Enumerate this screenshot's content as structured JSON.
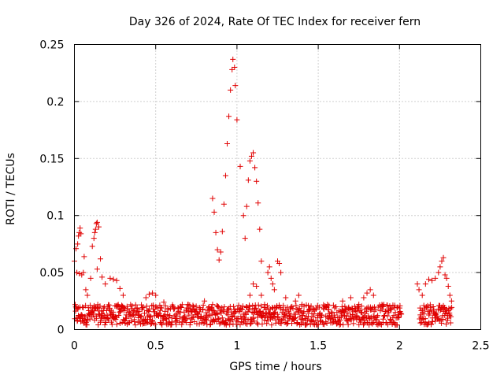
{
  "chart_data": {
    "type": "scatter",
    "title": "Day 326 of 2024, Rate Of TEC Index for receiver fern",
    "xlabel": "GPS time / hours",
    "ylabel": "ROTI / TECUs",
    "xlim": [
      0,
      2.5
    ],
    "ylim": [
      0,
      0.25
    ],
    "xticks": [
      0,
      0.5,
      1,
      1.5,
      2,
      2.5
    ],
    "xtick_labels": [
      "0",
      "0.5",
      "1",
      "1.5",
      "2",
      "2.5"
    ],
    "yticks": [
      0,
      0.05,
      0.1,
      0.15,
      0.2,
      0.25
    ],
    "ytick_labels": [
      "0",
      "0.05",
      "0.1",
      "0.15",
      "0.2",
      "0.25"
    ],
    "grid": true,
    "marker": "plus",
    "color": "#e00000",
    "series": [
      {
        "name": "ROTI",
        "points": [
          [
            0.0,
            0.06
          ],
          [
            0.01,
            0.071
          ],
          [
            0.015,
            0.05
          ],
          [
            0.02,
            0.075
          ],
          [
            0.025,
            0.082
          ],
          [
            0.03,
            0.085
          ],
          [
            0.035,
            0.089
          ],
          [
            0.04,
            0.084
          ],
          [
            0.03,
            0.049
          ],
          [
            0.045,
            0.048
          ],
          [
            0.055,
            0.05
          ],
          [
            0.06,
            0.064
          ],
          [
            0.07,
            0.035
          ],
          [
            0.08,
            0.03
          ],
          [
            0.1,
            0.045
          ],
          [
            0.11,
            0.073
          ],
          [
            0.12,
            0.08
          ],
          [
            0.125,
            0.085
          ],
          [
            0.13,
            0.088
          ],
          [
            0.135,
            0.093
          ],
          [
            0.14,
            0.094
          ],
          [
            0.15,
            0.09
          ],
          [
            0.16,
            0.062
          ],
          [
            0.14,
            0.053
          ],
          [
            0.17,
            0.046
          ],
          [
            0.19,
            0.04
          ],
          [
            0.22,
            0.045
          ],
          [
            0.24,
            0.044
          ],
          [
            0.26,
            0.043
          ],
          [
            0.28,
            0.036
          ],
          [
            0.3,
            0.03
          ],
          [
            0.44,
            0.028
          ],
          [
            0.46,
            0.031
          ],
          [
            0.48,
            0.032
          ],
          [
            0.5,
            0.03
          ],
          [
            0.55,
            0.024
          ],
          [
            0.6,
            0.02
          ],
          [
            0.7,
            0.022
          ],
          [
            0.8,
            0.025
          ],
          [
            0.85,
            0.022
          ],
          [
            0.85,
            0.115
          ],
          [
            0.86,
            0.103
          ],
          [
            0.87,
            0.085
          ],
          [
            0.88,
            0.07
          ],
          [
            0.89,
            0.061
          ],
          [
            0.9,
            0.068
          ],
          [
            0.91,
            0.086
          ],
          [
            0.92,
            0.11
          ],
          [
            0.93,
            0.135
          ],
          [
            0.94,
            0.163
          ],
          [
            0.95,
            0.187
          ],
          [
            0.96,
            0.21
          ],
          [
            0.97,
            0.228
          ],
          [
            0.975,
            0.237
          ],
          [
            0.985,
            0.23
          ],
          [
            0.99,
            0.214
          ],
          [
            1.0,
            0.184
          ],
          [
            1.02,
            0.143
          ],
          [
            1.04,
            0.1
          ],
          [
            1.05,
            0.08
          ],
          [
            1.06,
            0.108
          ],
          [
            1.07,
            0.131
          ],
          [
            1.08,
            0.148
          ],
          [
            1.09,
            0.152
          ],
          [
            1.1,
            0.155
          ],
          [
            1.11,
            0.142
          ],
          [
            1.12,
            0.13
          ],
          [
            1.13,
            0.111
          ],
          [
            1.14,
            0.088
          ],
          [
            1.15,
            0.06
          ],
          [
            1.06,
            0.02
          ],
          [
            1.08,
            0.03
          ],
          [
            1.1,
            0.04
          ],
          [
            1.12,
            0.038
          ],
          [
            1.15,
            0.03
          ],
          [
            1.17,
            0.022
          ],
          [
            1.19,
            0.05
          ],
          [
            1.2,
            0.055
          ],
          [
            1.21,
            0.045
          ],
          [
            1.22,
            0.04
          ],
          [
            1.23,
            0.035
          ],
          [
            1.25,
            0.06
          ],
          [
            1.26,
            0.058
          ],
          [
            1.27,
            0.05
          ],
          [
            1.3,
            0.028
          ],
          [
            1.33,
            0.018
          ],
          [
            1.36,
            0.025
          ],
          [
            1.38,
            0.03
          ],
          [
            1.4,
            0.022
          ],
          [
            1.45,
            0.018
          ],
          [
            1.55,
            0.02
          ],
          [
            1.65,
            0.025
          ],
          [
            1.7,
            0.028
          ],
          [
            1.75,
            0.022
          ],
          [
            1.78,
            0.028
          ],
          [
            1.8,
            0.032
          ],
          [
            1.82,
            0.035
          ],
          [
            1.84,
            0.03
          ],
          [
            1.9,
            0.02
          ],
          [
            1.95,
            0.018
          ],
          [
            2.0,
            0.015
          ],
          [
            2.11,
            0.04
          ],
          [
            2.12,
            0.035
          ],
          [
            2.14,
            0.03
          ],
          [
            2.16,
            0.04
          ],
          [
            2.18,
            0.044
          ],
          [
            2.2,
            0.043
          ],
          [
            2.22,
            0.045
          ],
          [
            2.24,
            0.05
          ],
          [
            2.25,
            0.055
          ],
          [
            2.26,
            0.06
          ],
          [
            2.27,
            0.063
          ],
          [
            2.28,
            0.048
          ],
          [
            2.29,
            0.045
          ],
          [
            2.3,
            0.038
          ],
          [
            2.31,
            0.03
          ],
          [
            2.32,
            0.025
          ]
        ]
      }
    ]
  }
}
